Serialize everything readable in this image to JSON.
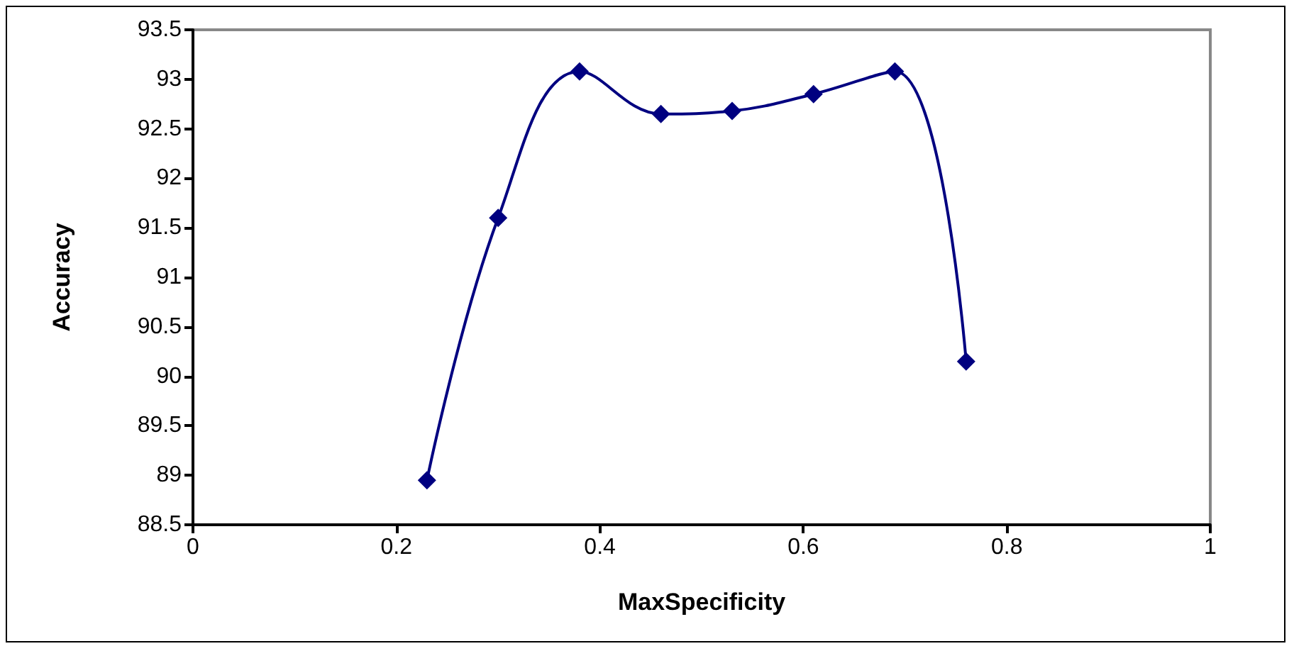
{
  "chart_data": {
    "type": "line",
    "xlabel": "MaxSpecificity",
    "ylabel": "Accuracy",
    "x": [
      0.23,
      0.3,
      0.38,
      0.46,
      0.53,
      0.61,
      0.69,
      0.76
    ],
    "series": [
      {
        "color": "#000080",
        "values": [
          88.95,
          91.6,
          93.08,
          92.65,
          92.68,
          92.85,
          93.08,
          90.15
        ]
      }
    ],
    "xlim": [
      0,
      1
    ],
    "xticks": [
      0,
      0.2,
      0.4,
      0.6,
      0.8,
      1
    ],
    "ylim": [
      88.5,
      93.5
    ],
    "yticks": [
      88.5,
      89,
      89.5,
      90,
      90.5,
      91,
      91.5,
      92,
      92.5,
      93,
      93.5
    ],
    "grid": false,
    "marker": "diamond",
    "line_style": "solid"
  }
}
